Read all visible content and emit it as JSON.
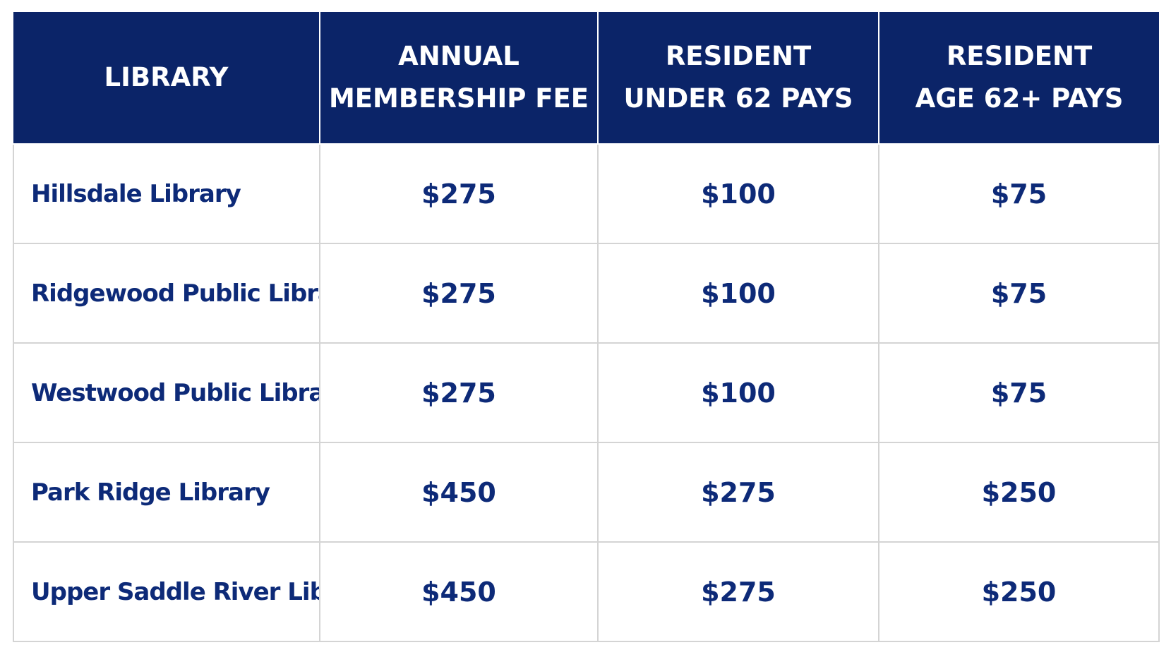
{
  "table": {
    "headers": [
      [
        "LIBRARY"
      ],
      [
        "ANNUAL",
        "MEMBERSHIP FEE"
      ],
      [
        "RESIDENT",
        "UNDER 62 PAYS"
      ],
      [
        "RESIDENT",
        "AGE 62+ PAYS"
      ]
    ],
    "rows": [
      [
        "Hillsdale Library",
        "$275",
        "$100",
        "$75"
      ],
      [
        "Ridgewood Public Library",
        "$275",
        "$100",
        "$75"
      ],
      [
        "Westwood Public Library",
        "$275",
        "$100",
        "$75"
      ],
      [
        "Park Ridge Library",
        "$450",
        "$275",
        "$250"
      ],
      [
        "Upper Saddle River Library",
        "$450",
        "$275",
        "$250"
      ]
    ]
  },
  "colors": {
    "header_background": "#0b2468",
    "header_text": "#ffffff",
    "body_text": "#0d2a78",
    "grid_lines": "#d4d4d4"
  }
}
